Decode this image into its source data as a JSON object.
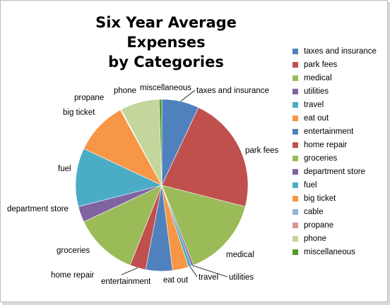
{
  "chart_data": {
    "type": "pie",
    "title": "Six Year Average Expenses",
    "subtitle": "by  Categories",
    "legend_position": "right",
    "slices": [
      {
        "label": "taxes and insurance",
        "value": 7.0,
        "color": "#4f81bd"
      },
      {
        "label": "park fees",
        "value": 22.0,
        "color": "#c0504d"
      },
      {
        "label": "medical",
        "value": 15.0,
        "color": "#9bbb59"
      },
      {
        "label": "utilities",
        "value": 0.4,
        "color": "#8064a2"
      },
      {
        "label": "travel",
        "value": 0.6,
        "color": "#4bacc6"
      },
      {
        "label": "eat out",
        "value": 3.0,
        "color": "#f79646"
      },
      {
        "label": "entertainment",
        "value": 5.0,
        "color": "#4f81bd"
      },
      {
        "label": "home repair",
        "value": 3.0,
        "color": "#c0504d"
      },
      {
        "label": "groceries",
        "value": 12.0,
        "color": "#9bbb59"
      },
      {
        "label": "department store",
        "value": 3.0,
        "color": "#8064a2"
      },
      {
        "label": "fuel",
        "value": 11.0,
        "color": "#4bacc6"
      },
      {
        "label": "big ticket",
        "value": 10.0,
        "color": "#f79646"
      },
      {
        "label": "cable",
        "value": 0.1,
        "color": "#95b3d7"
      },
      {
        "label": "propane",
        "value": 0.1,
        "color": "#d99694"
      },
      {
        "label": "phone",
        "value": 7.3,
        "color": "#c3d69b"
      },
      {
        "label": "miscellaneous",
        "value": 0.5,
        "color": "#4e9a2e"
      }
    ]
  }
}
